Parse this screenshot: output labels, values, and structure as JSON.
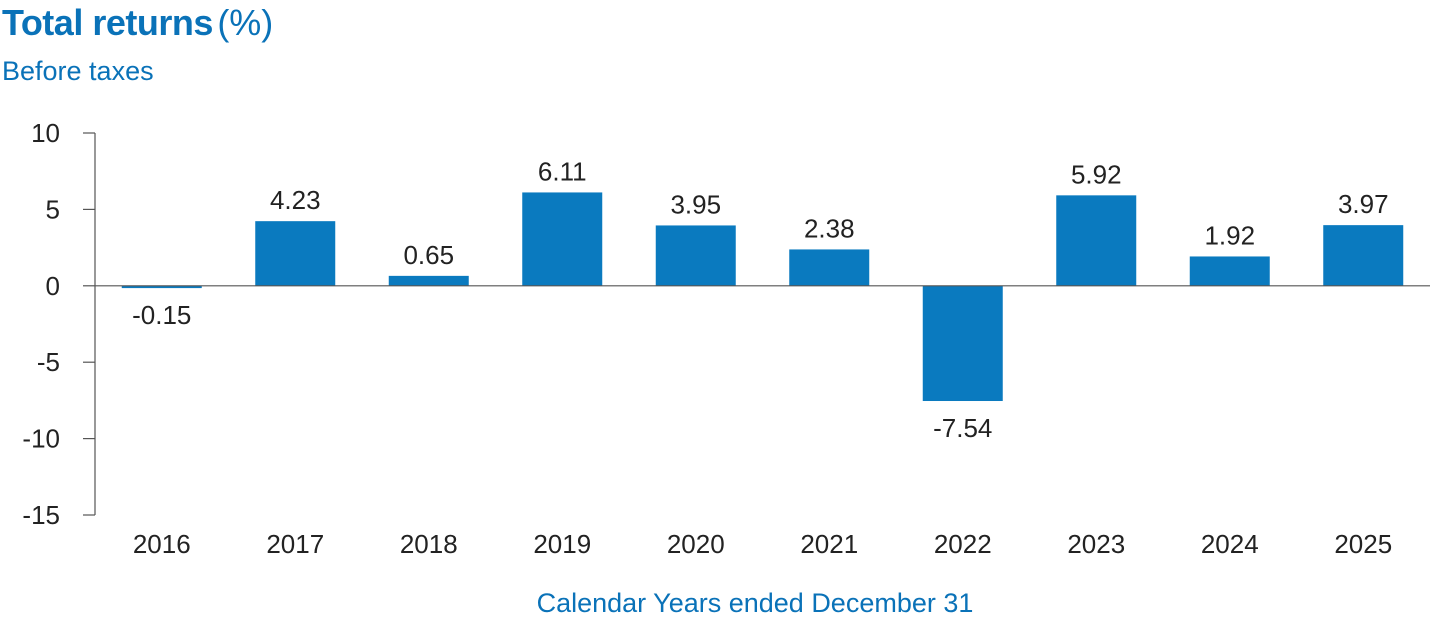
{
  "chart_data": {
    "type": "bar",
    "title": "Total returns",
    "title_unit": "(%)",
    "subtitle": "Before taxes",
    "xlabel": "Calendar Years ended December 31",
    "categories": [
      "2016",
      "2017",
      "2018",
      "2019",
      "2020",
      "2021",
      "2022",
      "2023",
      "2024",
      "2025"
    ],
    "values": [
      -0.15,
      4.23,
      0.65,
      6.11,
      3.95,
      2.38,
      -7.54,
      5.92,
      1.92,
      3.97
    ],
    "data_labels": [
      "-0.15",
      "4.23",
      "0.65",
      "6.11",
      "3.95",
      "2.38",
      "-7.54",
      "5.92",
      "1.92",
      "3.97"
    ],
    "ylim": [
      -15,
      10
    ],
    "yticks": [
      10,
      5,
      0,
      -5,
      -10,
      -15
    ],
    "ytick_labels": [
      "10",
      "5",
      "0",
      "-5",
      "-10",
      "-15"
    ],
    "grid": false,
    "bar_color": "#0a7abf",
    "text_color": "#222222",
    "accent_color": "#0a72b8"
  }
}
